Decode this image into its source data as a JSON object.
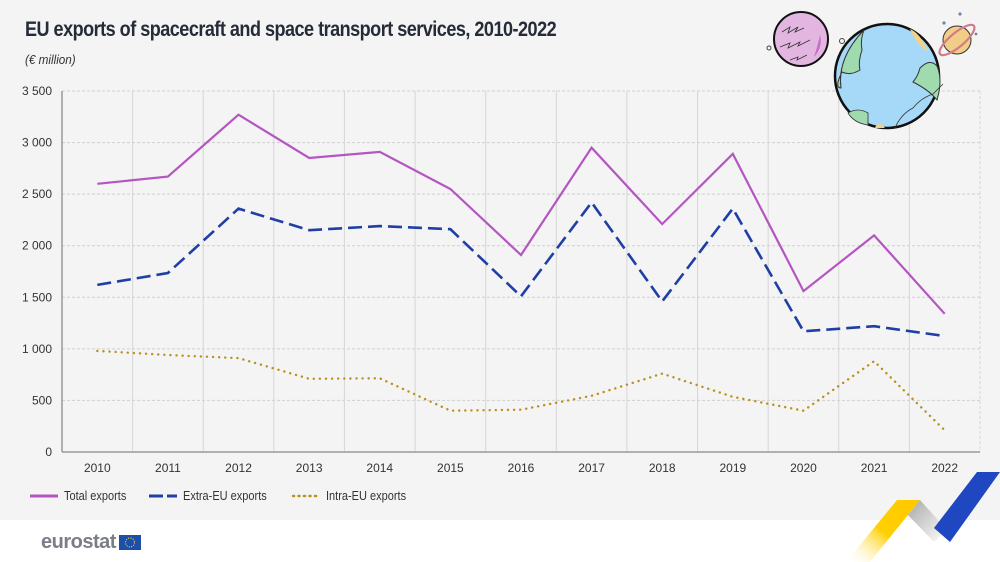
{
  "header": {
    "title": "EU exports of spacecraft and space transport services, 2010-2022",
    "subtitle": "(€ million)"
  },
  "branding": {
    "logo_text": "eurostat",
    "logo_flag_icon": "eu-flag-icon",
    "decoration_icons": [
      "planet-icon",
      "earth-icon",
      "saturn-icon",
      "eurostat-ribbon-icon"
    ]
  },
  "colors": {
    "total": "#b455c2",
    "extra": "#1f3fa6",
    "intra": "#b89220",
    "grid": "#d0d0d0",
    "background": "#f4f4f4"
  },
  "chart_data": {
    "type": "line",
    "title": "EU exports of spacecraft and space transport services, 2010-2022",
    "subtitle": "(€ million)",
    "xlabel": "",
    "ylabel": "",
    "x": [
      "2010",
      "2011",
      "2012",
      "2013",
      "2014",
      "2015",
      "2016",
      "2017",
      "2018",
      "2019",
      "2020",
      "2021",
      "2022"
    ],
    "ylim": [
      0,
      3500
    ],
    "yticks": [
      0,
      500,
      1000,
      1500,
      2000,
      2500,
      3000,
      3500
    ],
    "ytick_labels": [
      "0",
      "500",
      "1 000",
      "1 500",
      "2 000",
      "2 500",
      "3 000",
      "3 500"
    ],
    "grid": true,
    "legend_position": "bottom-left",
    "series": [
      {
        "name": "Total exports",
        "style": "solid",
        "values": [
          2600,
          2670,
          3270,
          2850,
          2910,
          2550,
          1910,
          2950,
          2210,
          2890,
          1560,
          2100,
          1340
        ]
      },
      {
        "name": "Extra-EU exports",
        "style": "dashed",
        "values": [
          1620,
          1735,
          2360,
          2150,
          2190,
          2160,
          1510,
          2420,
          1460,
          2360,
          1170,
          1220,
          1125
        ]
      },
      {
        "name": "Intra-EU exports",
        "style": "dotted",
        "values": [
          980,
          940,
          910,
          710,
          715,
          400,
          410,
          545,
          760,
          535,
          400,
          880,
          210
        ]
      }
    ]
  }
}
